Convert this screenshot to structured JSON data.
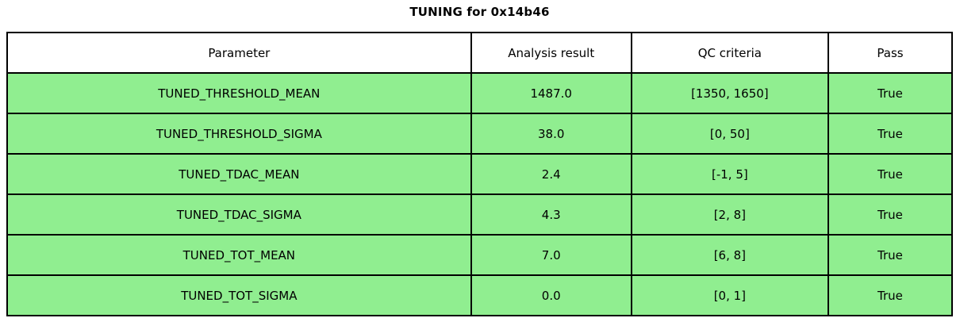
{
  "chart_data": {
    "type": "table",
    "title": "TUNING for 0x14b46",
    "columns": [
      "Parameter",
      "Analysis result",
      "QC criteria",
      "Pass"
    ],
    "rows": [
      [
        "TUNED_THRESHOLD_MEAN",
        "1487.0",
        "[1350, 1650]",
        "True"
      ],
      [
        "TUNED_THRESHOLD_SIGMA",
        "38.0",
        "[0, 50]",
        "True"
      ],
      [
        "TUNED_TDAC_MEAN",
        "2.4",
        "[-1, 5]",
        "True"
      ],
      [
        "TUNED_TDAC_SIGMA",
        "4.3",
        "[2, 8]",
        "True"
      ],
      [
        "TUNED_TOT_MEAN",
        "7.0",
        "[6, 8]",
        "True"
      ],
      [
        "TUNED_TOT_SIGMA",
        "0.0",
        "[0, 1]",
        "True"
      ]
    ],
    "layout": {
      "legend": "none",
      "grid": "cell-borders",
      "header_position": "top"
    }
  },
  "colors": {
    "pass_row_bg": "#90EE90",
    "header_bg": "#FFFFFF",
    "border": "#000000",
    "text": "#000000"
  }
}
